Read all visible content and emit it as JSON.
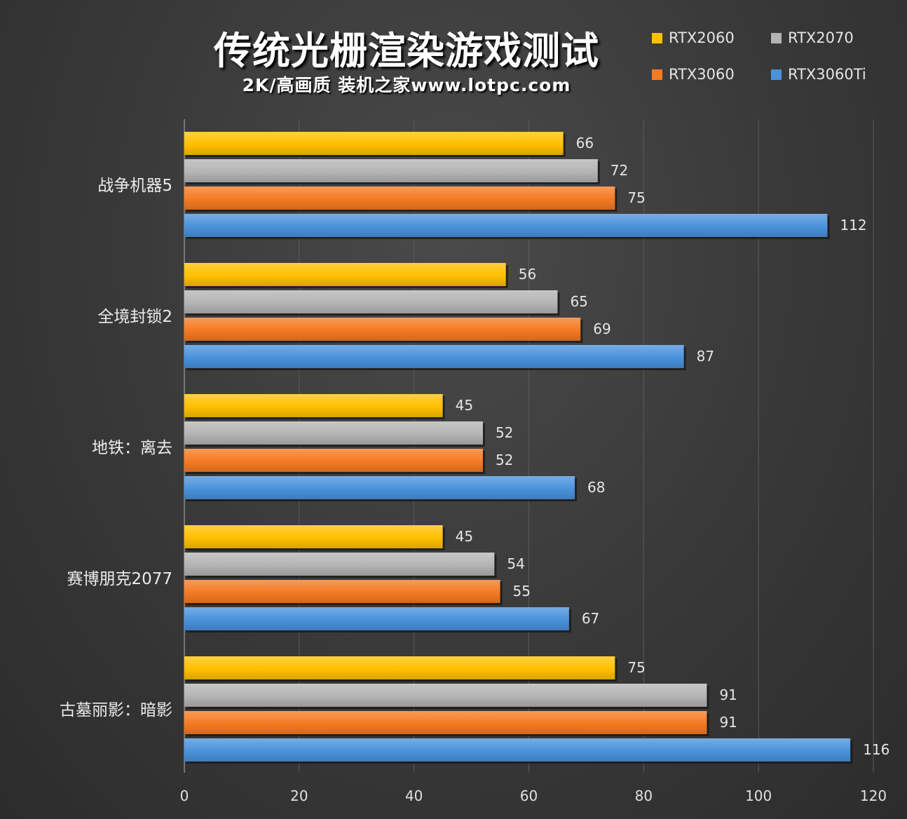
{
  "header": {
    "title": "传统光栅渲染游戏测试",
    "subtitle": "2K/高画质 装机之家www.lotpc.com"
  },
  "chart_data": {
    "type": "bar",
    "orientation": "horizontal",
    "title": "传统光栅渲染游戏测试",
    "subtitle": "2K/高画质 装机之家www.lotpc.com",
    "categories": [
      "战争机器5",
      "全境封锁2",
      "地铁：离去",
      "赛博朋克2077",
      "古墓丽影：暗影"
    ],
    "series": [
      {
        "name": "RTX2060",
        "color": "#ffc000",
        "values": [
          66,
          56,
          45,
          45,
          75
        ]
      },
      {
        "name": "RTX2070",
        "color": "#b4b4b4",
        "values": [
          72,
          65,
          52,
          54,
          91
        ]
      },
      {
        "name": "RTX3060",
        "color": "#f57a22",
        "values": [
          75,
          69,
          52,
          55,
          91
        ]
      },
      {
        "name": "RTX3060Ti",
        "color": "#4a92dc",
        "values": [
          112,
          87,
          68,
          67,
          116
        ]
      }
    ],
    "xlim": [
      0,
      120
    ],
    "xticks": [
      "0",
      "20",
      "40",
      "60",
      "80",
      "100",
      "120"
    ],
    "grid": true,
    "legend_position": "top-right",
    "data_labels": true
  }
}
